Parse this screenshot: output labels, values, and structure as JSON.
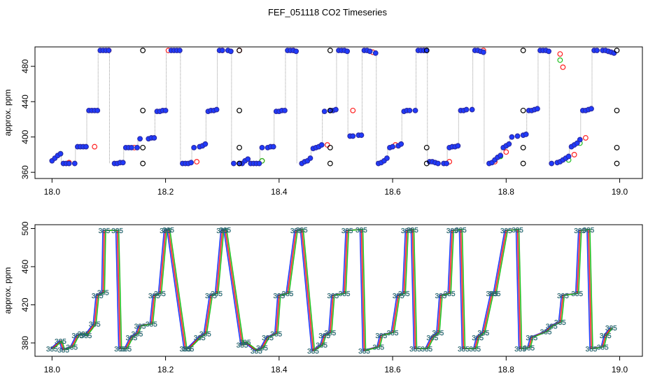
{
  "title": "FEF_051118  CO2 Timeseries",
  "colors": {
    "blue": "#1f3bff",
    "red": "#ff1f1f",
    "green": "#1fbf1f",
    "black": "#000000",
    "grey_line": "#9a9a9a",
    "cyan": "#17a0b4"
  },
  "chart_data": [
    {
      "type": "scatter",
      "ylabel": "approx. ppm",
      "xlim": [
        17.97,
        19.04
      ],
      "ylim": [
        353,
        502
      ],
      "xticks": [
        18.0,
        18.2,
        18.4,
        18.6,
        18.8,
        19.0
      ],
      "xtick_labels": [
        "18.0",
        "18.2",
        "18.4",
        "18.6",
        "18.8",
        "19.0"
      ],
      "yticks": [
        360,
        400,
        440,
        480
      ],
      "ytick_labels": [
        "360",
        "400",
        "440",
        "480"
      ],
      "grid": false,
      "series": [
        {
          "color": "blue",
          "x": [
            18.0,
            18.005,
            18.01,
            18.015,
            18.02,
            18.025,
            18.03,
            18.04,
            18.045,
            18.05,
            18.055,
            18.06,
            18.065,
            18.07,
            18.075,
            18.08,
            18.085,
            18.09,
            18.095,
            18.1,
            18.11,
            18.115,
            18.12,
            18.125,
            18.13,
            18.135,
            18.14,
            18.15,
            18.155,
            18.17,
            18.175,
            18.18,
            18.185,
            18.19,
            18.195,
            18.2,
            18.21,
            18.215,
            18.22,
            18.225,
            18.23,
            18.235,
            18.24,
            18.245,
            18.25,
            18.26,
            18.265,
            18.27,
            18.275,
            18.28,
            18.285,
            18.29,
            18.295,
            18.3,
            18.31,
            18.315,
            18.32,
            18.33,
            18.335,
            18.34,
            18.345,
            18.35,
            18.355,
            18.36,
            18.365,
            18.37,
            18.38,
            18.385,
            18.39,
            18.395,
            18.4,
            18.405,
            18.41,
            18.415,
            18.42,
            18.425,
            18.43,
            18.44,
            18.445,
            18.45,
            18.455,
            18.46,
            18.465,
            18.47,
            18.475,
            18.48,
            18.49,
            18.495,
            18.5,
            18.505,
            18.51,
            18.515,
            18.52,
            18.525,
            18.53,
            18.54,
            18.545,
            18.55,
            18.555,
            18.56,
            18.57,
            18.575,
            18.58,
            18.585,
            18.59,
            18.595,
            18.6,
            18.61,
            18.615,
            18.62,
            18.625,
            18.63,
            18.64,
            18.645,
            18.65,
            18.655,
            18.66,
            18.665,
            18.67,
            18.675,
            18.68,
            18.69,
            18.695,
            18.7,
            18.705,
            18.71,
            18.715,
            18.72,
            18.725,
            18.73,
            18.74,
            18.745,
            18.75,
            18.755,
            18.76,
            18.77,
            18.775,
            18.78,
            18.785,
            18.79,
            18.795,
            18.8,
            18.805,
            18.81,
            18.82,
            18.83,
            18.835,
            18.84,
            18.845,
            18.85,
            18.855,
            18.86,
            18.865,
            18.87,
            18.875,
            18.88,
            18.89,
            18.895,
            18.9,
            18.905,
            18.91,
            18.915,
            18.92,
            18.925,
            18.93,
            18.935,
            18.94,
            18.945,
            18.95,
            18.955,
            18.96,
            18.97,
            18.975,
            18.98,
            18.985,
            18.99
          ],
          "y": [
            373,
            376,
            379,
            381,
            370,
            370,
            370,
            370,
            389,
            389,
            389,
            389,
            430,
            430,
            430,
            430,
            498,
            498,
            498,
            498,
            370,
            370,
            371,
            371,
            388,
            388,
            388,
            388,
            398,
            398,
            399,
            399,
            429,
            429,
            430,
            430,
            498,
            498,
            498,
            498,
            370,
            370,
            370,
            371,
            388,
            389,
            390,
            392,
            429,
            430,
            430,
            431,
            498,
            498,
            498,
            497,
            370,
            370,
            370,
            373,
            375,
            370,
            370,
            370,
            370,
            388,
            388,
            389,
            389,
            429,
            429,
            430,
            430,
            498,
            498,
            498,
            497,
            370,
            372,
            373,
            376,
            387,
            388,
            389,
            391,
            429,
            430,
            430,
            431,
            498,
            498,
            498,
            497,
            401,
            401,
            402,
            402,
            498,
            498,
            497,
            495,
            370,
            371,
            373,
            376,
            388,
            389,
            390,
            392,
            429,
            430,
            430,
            430,
            498,
            498,
            498,
            498,
            372,
            372,
            371,
            370,
            370,
            370,
            388,
            389,
            389,
            390,
            430,
            430,
            431,
            431,
            498,
            498,
            497,
            496,
            370,
            371,
            374,
            377,
            379,
            388,
            390,
            392,
            400,
            401,
            402,
            403,
            430,
            430,
            431,
            432,
            498,
            498,
            498,
            497,
            370,
            371,
            372,
            374,
            376,
            378,
            389,
            391,
            393,
            397,
            430,
            430,
            431,
            432,
            498,
            498,
            498,
            498,
            497,
            496,
            495
          ]
        },
        {
          "color": "red",
          "x": [
            18.03,
            18.075,
            18.1,
            18.145,
            18.205,
            18.255,
            18.3,
            18.33,
            18.37,
            18.425,
            18.485,
            18.53,
            18.565,
            18.605,
            18.655,
            18.7,
            18.76,
            18.78,
            18.8,
            18.895,
            18.9,
            18.92,
            18.94,
            18.98
          ],
          "y": [
            371,
            389,
            498,
            388,
            498,
            372,
            498,
            498,
            373,
            498,
            391,
            430,
            496,
            391,
            498,
            372,
            498,
            372,
            383,
            494,
            479,
            380,
            399,
            497
          ]
        },
        {
          "color": "green",
          "x": [
            18.015,
            18.37,
            18.79,
            18.895,
            18.91,
            18.93
          ],
          "y": [
            381,
            373,
            378,
            487,
            374,
            393
          ]
        },
        {
          "color": "black",
          "x": [
            18.16,
            18.16,
            18.16,
            18.16,
            18.33,
            18.33,
            18.33,
            18.33,
            18.49,
            18.49,
            18.49,
            18.49,
            18.66,
            18.66,
            18.66,
            18.83,
            18.83,
            18.83,
            18.83,
            18.995,
            18.995,
            18.995,
            18.995
          ],
          "y": [
            370,
            388,
            430,
            498,
            370,
            388,
            430,
            498,
            370,
            388,
            430,
            498,
            370,
            388,
            498,
            370,
            388,
            430,
            498,
            370,
            388,
            430,
            498
          ]
        }
      ]
    },
    {
      "type": "line",
      "ylabel": "approx. ppm",
      "xlim": [
        17.97,
        19.04
      ],
      "ylim": [
        366,
        504
      ],
      "xticks": [
        18.0,
        18.2,
        18.4,
        18.6,
        18.8,
        19.0
      ],
      "xtick_labels": [
        "18.0",
        "18.2",
        "18.4",
        "18.6",
        "18.8",
        "19.0"
      ],
      "yticks": [
        380,
        420,
        460,
        500
      ],
      "ytick_labels": [
        "380",
        "420",
        "460",
        "500"
      ],
      "grid": false,
      "point_label": "385",
      "series": [
        {
          "color": "blue",
          "x": [
            18.0,
            18.015,
            18.02,
            18.035,
            18.045,
            18.055,
            18.06,
            18.075,
            18.08,
            18.09,
            18.092,
            18.115,
            18.12,
            18.13,
            18.14,
            18.15,
            18.155,
            18.175,
            18.18,
            18.19,
            18.2,
            18.205,
            18.235,
            18.24,
            18.26,
            18.27,
            18.28,
            18.29,
            18.3,
            18.305,
            18.335,
            18.34,
            18.36,
            18.37,
            18.38,
            18.395,
            18.4,
            18.415,
            18.43,
            18.44,
            18.46,
            18.475,
            18.48,
            18.49,
            18.495,
            18.515,
            18.52,
            18.545,
            18.55,
            18.575,
            18.58,
            18.6,
            18.61,
            18.62,
            18.625,
            18.635,
            18.64,
            18.66,
            18.67,
            18.68,
            18.685,
            18.7,
            18.705,
            18.72,
            18.725,
            18.745,
            18.75,
            18.76,
            18.775,
            18.78,
            18.8,
            18.82,
            18.825,
            18.84,
            18.845,
            18.87,
            18.88,
            18.895,
            18.9,
            18.925,
            18.93,
            18.945,
            18.95,
            18.97,
            18.975,
            18.985
          ],
          "y": [
            374,
            382,
            373,
            376,
            388,
            390,
            388,
            400,
            430,
            433,
            498,
            498,
            374,
            374,
            386,
            390,
            398,
            400,
            430,
            432,
            498,
            499,
            374,
            374,
            386,
            390,
            430,
            432,
            498,
            499,
            378,
            381,
            372,
            375,
            386,
            390,
            430,
            432,
            498,
            499,
            372,
            378,
            388,
            391,
            430,
            432,
            498,
            499,
            372,
            376,
            388,
            391,
            430,
            432,
            498,
            499,
            374,
            374,
            386,
            391,
            430,
            432,
            498,
            499,
            374,
            374,
            386,
            391,
            432,
            432,
            498,
            499,
            374,
            375,
            386,
            392,
            398,
            402,
            430,
            432,
            498,
            499,
            374,
            376,
            388,
            396
          ]
        }
      ]
    }
  ]
}
